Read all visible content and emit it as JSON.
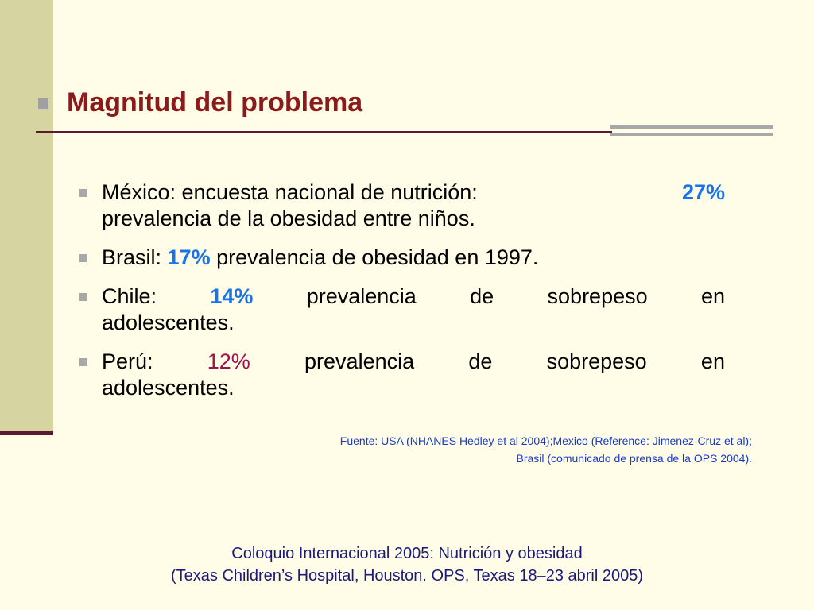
{
  "title": "Magnitud del problema",
  "items": [
    {
      "lead": "México:  encuesta  nacional  de  nutrición:",
      "value": "27%",
      "rest": "prevalencia de la obesidad entre niños."
    },
    {
      "lead": "Brasil:",
      "value": "17%",
      "rest": "prevalencia de obesidad en 1997."
    },
    {
      "lead": "Chile:",
      "value": "14%",
      "w1": "prevalencia",
      "w2": "de",
      "w3": "sobrepeso",
      "w4": "en",
      "rest": "adolescentes."
    },
    {
      "lead": "Perú:",
      "value": "12%",
      "w1": "prevalencia",
      "w2": "de",
      "w3": "sobrepeso",
      "w4": "en",
      "rest": "adolescentes."
    }
  ],
  "source": {
    "line1": "Fuente: USA (NHANES Hedley et al 2004);Mexico (Reference: Jimenez-Cruz et al);",
    "line2": "Brasil (comunicado de prensa de la OPS 2004)."
  },
  "footer": {
    "line1": "Coloquio Internacional 2005: Nutrición y obesidad",
    "line2": "(Texas Children’s Hospital, Houston. OPS, Texas 18–23 abril 2005)"
  },
  "colors": {
    "background": "#fffde7",
    "title": "#8b1a1a",
    "highlight_blue": "#1a73e8",
    "highlight_crimson": "#a0104a",
    "source_text": "#1a3ac8",
    "footer_text": "#1a1a7a"
  }
}
